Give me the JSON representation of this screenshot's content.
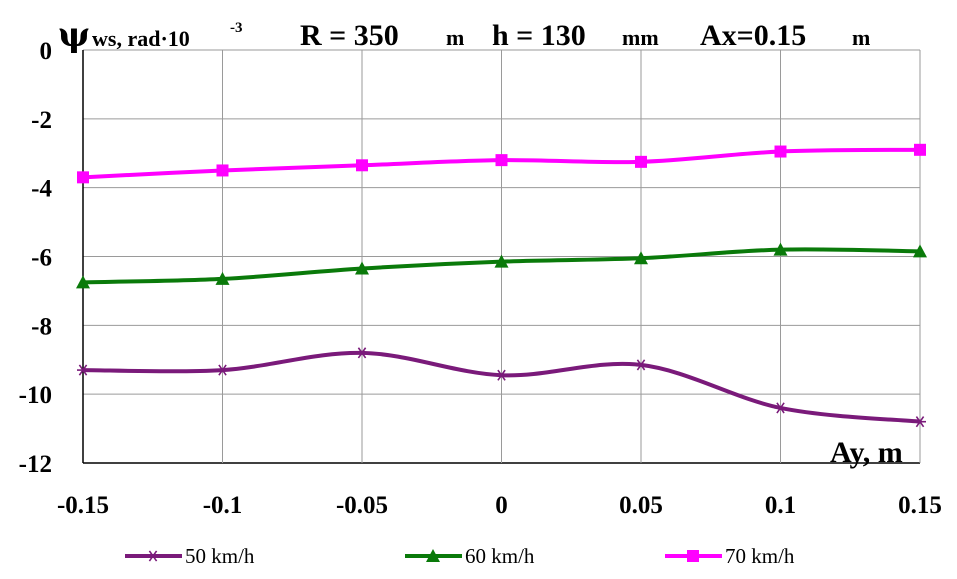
{
  "chart_data": {
    "type": "line",
    "title": {
      "r": "R = 350",
      "r_unit": "m",
      "h": "h = 130",
      "h_unit": "mm",
      "ax": "Ax=0.15",
      "ax_unit": "m"
    },
    "ylabel": {
      "symbol": "ψ",
      "subscript": "ws, rad·10",
      "superscript": "-3"
    },
    "xlabel": "Ay, m",
    "x": [
      -0.15,
      -0.1,
      -0.05,
      0,
      0.05,
      0.1,
      0.15
    ],
    "x_tick_labels": [
      "-0.15",
      "-0.1",
      "-0.05",
      "0",
      "0.05",
      "0.1",
      "0.15"
    ],
    "xlim": [
      -0.15,
      0.15
    ],
    "y_ticks": [
      0,
      -2,
      -4,
      -6,
      -8,
      -10,
      -12
    ],
    "y_tick_labels": [
      "0",
      "-2",
      "-4",
      "-6",
      "-8",
      "-10",
      "-12"
    ],
    "ylim": [
      -12,
      0
    ],
    "grid": true,
    "legend_position": "bottom",
    "series": [
      {
        "name": "50 km/h",
        "color": "#7a1a7a",
        "marker": "star",
        "values": [
          -9.3,
          -9.3,
          -8.8,
          -9.45,
          -9.15,
          -10.4,
          -10.8
        ]
      },
      {
        "name": "60 km/h",
        "color": "#0a7a0a",
        "marker": "triangle",
        "values": [
          -6.75,
          -6.65,
          -6.35,
          -6.15,
          -6.05,
          -5.8,
          -5.85
        ]
      },
      {
        "name": "70 km/h",
        "color": "#ff00ff",
        "marker": "square",
        "values": [
          -3.7,
          -3.5,
          -3.35,
          -3.2,
          -3.25,
          -2.95,
          -2.9
        ]
      }
    ]
  }
}
